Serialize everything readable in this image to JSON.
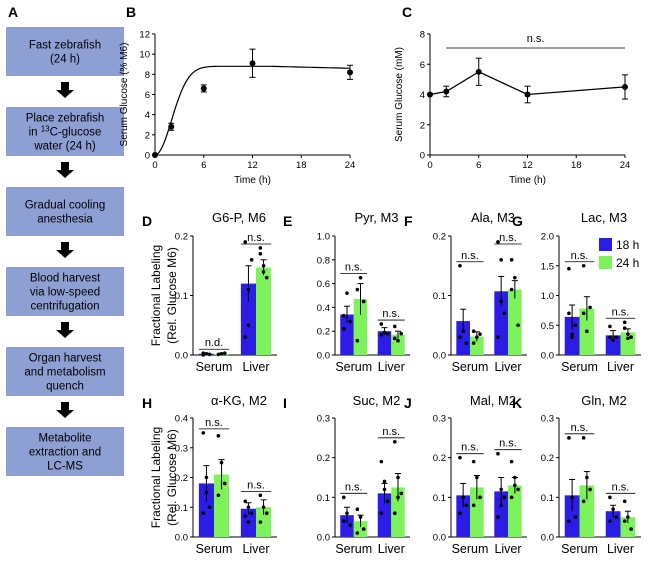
{
  "flowchart": {
    "letter": "A",
    "steps": [
      {
        "lines": [
          [
            "Fast zebrafish"
          ],
          [
            "(24 h)"
          ]
        ]
      },
      {
        "lines": [
          [
            "Place zebrafish"
          ],
          [
            "in ",
            {
              "sup": "13"
            },
            "C-glucose"
          ],
          [
            "water (24 h)"
          ]
        ]
      },
      {
        "lines": [
          [
            "Gradual cooling"
          ],
          [
            "anesthesia"
          ]
        ]
      },
      {
        "lines": [
          [
            "Blood harvest"
          ],
          [
            "via low-speed"
          ],
          [
            "centrifugation"
          ]
        ]
      },
      {
        "lines": [
          [
            "Organ harvest"
          ],
          [
            "and metabolism"
          ],
          [
            "quench"
          ]
        ]
      },
      {
        "lines": [
          [
            "Metabolite"
          ],
          [
            "extraction and"
          ],
          [
            "LC-MS"
          ]
        ]
      }
    ],
    "box_color": "#8e9fd3",
    "arrow_color": "#000000"
  },
  "chart_data": [
    {
      "panel": "B",
      "type": "line",
      "xlabel": "Time (h)",
      "ylabel": "Serum Glucose (% M6)",
      "x": [
        0,
        2,
        6,
        12,
        24
      ],
      "y": [
        0,
        2.8,
        6.6,
        9.1,
        8.2
      ],
      "error": [
        0,
        0.35,
        0.35,
        1.4,
        0.7
      ],
      "fit_curve": true,
      "xlim": [
        0,
        24
      ],
      "ylim": [
        0,
        12
      ],
      "xticks": [
        "0",
        "6",
        "12",
        "18",
        "24"
      ],
      "yticks": [
        "0",
        "2",
        "4",
        "6",
        "8",
        "10",
        "12"
      ]
    },
    {
      "panel": "C",
      "type": "line",
      "xlabel": "Time (h)",
      "ylabel": "Serum Glucose (mM)",
      "x": [
        0,
        2,
        6,
        12,
        24
      ],
      "y": [
        4.0,
        4.2,
        5.5,
        4.0,
        4.5
      ],
      "error": [
        0,
        0.35,
        0.9,
        0.55,
        0.8
      ],
      "significance": "n.s.",
      "xlim": [
        0,
        24
      ],
      "ylim": [
        0,
        8
      ],
      "xticks": [
        "0",
        "6",
        "12",
        "18",
        "24"
      ],
      "yticks": [
        "0",
        "2",
        "4",
        "6",
        "8"
      ]
    },
    {
      "panel": "D",
      "type": "bar",
      "title": "G6-P, M6",
      "categories": [
        "Serum",
        "Liver"
      ],
      "ylim": [
        0,
        0.2
      ],
      "yticks": [
        "0.0",
        "0.1",
        "0.2"
      ],
      "series": [
        {
          "name": "18 h",
          "values": [
            0.002,
            0.12
          ],
          "errors": [
            0.001,
            0.03
          ],
          "points": [
            [
              0,
              0.002,
              0.001,
              0.003
            ],
            [
              0.19,
              0.11,
              0.16,
              0.03,
              0.05
            ]
          ]
        },
        {
          "name": "24 h",
          "values": [
            0.002,
            0.147
          ],
          "errors": [
            0.001,
            0.013
          ],
          "points": [
            [
              0.001,
              0.002,
              0.003
            ],
            [
              0.18,
              0.15,
              0.13,
              0.17,
              0.14
            ]
          ]
        }
      ],
      "annotations": [
        "n.d.",
        "n.s."
      ]
    },
    {
      "panel": "E",
      "type": "bar",
      "title": "Pyr, M3",
      "categories": [
        "Serum",
        "Liver"
      ],
      "ylim": [
        0,
        1.0
      ],
      "yticks": [
        "0.0",
        "0.2",
        "0.4",
        "0.6",
        "0.8",
        "1.0"
      ],
      "series": [
        {
          "name": "18 h",
          "values": [
            0.34,
            0.2
          ],
          "errors": [
            0.07,
            0.03
          ],
          "points": [
            [
              0.22,
              0.52,
              0.28,
              0.33
            ],
            [
              0.26,
              0.19,
              0.18,
              0.17
            ]
          ]
        },
        {
          "name": "24 h",
          "values": [
            0.47,
            0.17
          ],
          "errors": [
            0.13,
            0.03
          ],
          "points": [
            [
              0.12,
              0.65,
              0.45,
              0.55
            ],
            [
              0.24,
              0.12,
              0.18,
              0.14
            ]
          ]
        }
      ],
      "annotations": [
        "n.s.",
        "n.s."
      ]
    },
    {
      "panel": "F",
      "type": "bar",
      "title": "Ala, M3",
      "categories": [
        "Serum",
        "Liver"
      ],
      "ylim": [
        0,
        0.2
      ],
      "yticks": [
        "0.0",
        "0.1",
        "0.2"
      ],
      "series": [
        {
          "name": "18 h",
          "values": [
            0.057,
            0.107
          ],
          "errors": [
            0.02,
            0.025
          ],
          "points": [
            [
              0.15,
              0.04,
              0.02,
              0.03
            ],
            [
              0.19,
              0.16,
              0.07,
              0.03,
              0.09
            ]
          ]
        },
        {
          "name": "24 h",
          "values": [
            0.031,
            0.11
          ],
          "errors": [
            0.008,
            0.015
          ],
          "points": [
            [
              0.02,
              0.03,
              0.035,
              0.04
            ],
            [
              0.16,
              0.13,
              0.05,
              0.11
            ]
          ]
        }
      ],
      "annotations": [
        "n.s.",
        "n.s."
      ]
    },
    {
      "panel": "G",
      "type": "bar",
      "title": "Lac, M3",
      "categories": [
        "Serum",
        "Liver"
      ],
      "ylim": [
        0,
        2.0
      ],
      "yticks": [
        "0.0",
        "0.5",
        "1.0",
        "1.5",
        "2.0"
      ],
      "series": [
        {
          "name": "18 h",
          "values": [
            0.64,
            0.33
          ],
          "errors": [
            0.2,
            0.08
          ],
          "points": [
            [
              1.45,
              0.3,
              0.5,
              0.7,
              0.35
            ],
            [
              0.48,
              0.25,
              0.3,
              0.3
            ]
          ]
        },
        {
          "name": "24 h",
          "values": [
            0.78,
            0.38
          ],
          "errors": [
            0.2,
            0.06
          ],
          "points": [
            [
              1.5,
              0.4,
              0.8,
              0.7
            ],
            [
              0.55,
              0.35,
              0.3,
              0.45,
              0.28
            ]
          ]
        }
      ],
      "annotations": [
        "n.s.",
        "n.s."
      ],
      "legend": {
        "position": "top-right",
        "labels": [
          "18 h",
          "24 h"
        ]
      }
    },
    {
      "panel": "H",
      "type": "bar",
      "title": "α-KG, M2",
      "categories": [
        "Serum",
        "Liver"
      ],
      "ylim": [
        0,
        0.4
      ],
      "yticks": [
        "0.0",
        "0.1",
        "0.2",
        "0.3",
        "0.4"
      ],
      "series": [
        {
          "name": "18 h",
          "values": [
            0.18,
            0.095
          ],
          "errors": [
            0.06,
            0.02
          ],
          "points": [
            [
              0.35,
              0.2,
              0.1,
              0.08,
              0.15
            ],
            [
              0.12,
              0.1,
              0.08,
              0.07,
              0.05
            ]
          ]
        },
        {
          "name": "24 h",
          "values": [
            0.21,
            0.1
          ],
          "errors": [
            0.05,
            0.025
          ],
          "points": [
            [
              0.34,
              0.25,
              0.18,
              0.14
            ],
            [
              0.14,
              0.1,
              0.08,
              0.05
            ]
          ]
        }
      ],
      "annotations": [
        "n.s.",
        "n.s."
      ]
    },
    {
      "panel": "I",
      "type": "bar",
      "title": "Suc, M2",
      "categories": [
        "Serum",
        "Liver"
      ],
      "ylim": [
        0,
        0.3
      ],
      "yticks": [
        "0.0",
        "0.1",
        "0.2",
        "0.3"
      ],
      "series": [
        {
          "name": "18 h",
          "values": [
            0.055,
            0.11
          ],
          "errors": [
            0.02,
            0.025
          ],
          "points": [
            [
              0.1,
              0.06,
              0.03,
              0.04
            ],
            [
              0.19,
              0.12,
              0.09,
              0.06,
              0.14
            ]
          ]
        },
        {
          "name": "24 h",
          "values": [
            0.04,
            0.125
          ],
          "errors": [
            0.015,
            0.035
          ],
          "points": [
            [
              0.07,
              0.05,
              0.02,
              0.01
            ],
            [
              0.24,
              0.15,
              0.11,
              0.06,
              0.1
            ]
          ]
        }
      ],
      "annotations": [
        "n.s.",
        "n.s."
      ]
    },
    {
      "panel": "J",
      "type": "bar",
      "title": "Mal, M2",
      "categories": [
        "Serum",
        "Liver"
      ],
      "ylim": [
        0,
        0.3
      ],
      "yticks": [
        "0.0",
        "0.1",
        "0.2",
        "0.3"
      ],
      "series": [
        {
          "name": "18 h",
          "values": [
            0.105,
            0.115
          ],
          "errors": [
            0.03,
            0.035
          ],
          "points": [
            [
              0.2,
              0.1,
              0.08,
              0.06
            ],
            [
              0.21,
              0.12,
              0.1,
              0.05,
              0.08
            ]
          ]
        },
        {
          "name": "24 h",
          "values": [
            0.125,
            0.13
          ],
          "errors": [
            0.03,
            0.02
          ],
          "points": [
            [
              0.19,
              0.15,
              0.1,
              0.08
            ],
            [
              0.19,
              0.13,
              0.12,
              0.1,
              0.15
            ]
          ]
        }
      ],
      "annotations": [
        "n.s.",
        "n.s."
      ]
    },
    {
      "panel": "K",
      "type": "bar",
      "title": "Gln, M2",
      "categories": [
        "Serum",
        "Liver"
      ],
      "ylim": [
        0,
        0.3
      ],
      "yticks": [
        "0.0",
        "0.1",
        "0.2",
        "0.3"
      ],
      "series": [
        {
          "name": "18 h",
          "values": [
            0.105,
            0.065
          ],
          "errors": [
            0.04,
            0.015
          ],
          "points": [
            [
              0.25,
              0.1,
              0.05,
              0.04
            ],
            [
              0.1,
              0.07,
              0.05,
              0.04
            ]
          ]
        },
        {
          "name": "24 h",
          "values": [
            0.13,
            0.05
          ],
          "errors": [
            0.035,
            0.015
          ],
          "points": [
            [
              0.25,
              0.15,
              0.12,
              0.09
            ],
            [
              0.09,
              0.05,
              0.02,
              0.04
            ]
          ]
        }
      ],
      "annotations": [
        "n.s.",
        "n.s."
      ]
    }
  ],
  "shared": {
    "bar_ylabel_line1": "Fractional Labeling",
    "bar_ylabel_line2": "(Rel. Glucose M6)",
    "colors": {
      "18 h": "#2b1de6",
      "24 h": "#7df25b"
    }
  }
}
